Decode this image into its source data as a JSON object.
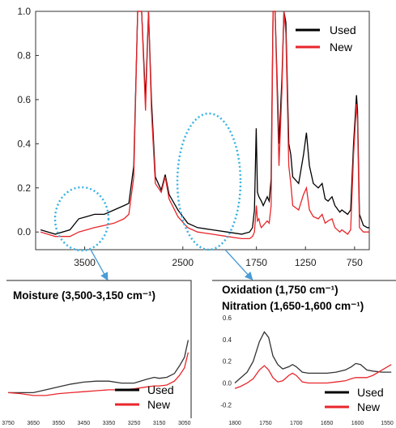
{
  "chart_data": [
    {
      "type": "line",
      "panel": "main",
      "title": "",
      "xlabel": "",
      "ylabel": "",
      "x_reversed": true,
      "xlim": [
        4000,
        600
      ],
      "ylim": [
        -0.08,
        1.0
      ],
      "x_ticks": [
        3500,
        2500,
        1750,
        1250,
        750
      ],
      "x_tick_labels": [
        "3500",
        "2500",
        "1750",
        "1250",
        "750"
      ],
      "y_ticks": [
        0.0,
        0.2,
        0.4,
        0.6,
        0.8,
        1.0
      ],
      "y_tick_labels": [
        "0.0",
        "0.2",
        "0.4",
        "0.6",
        "0.8",
        "1.0"
      ],
      "grid": false,
      "legend": {
        "position": "top-right",
        "entries": [
          "Used",
          "New"
        ]
      },
      "series": [
        {
          "name": "Used",
          "color": "#000000",
          "points": [
            [
              3950,
              0.01
            ],
            [
              3800,
              -0.01
            ],
            [
              3650,
              0.01
            ],
            [
              3560,
              0.06
            ],
            [
              3480,
              0.07
            ],
            [
              3400,
              0.08
            ],
            [
              3300,
              0.08
            ],
            [
              3200,
              0.1
            ],
            [
              3100,
              0.12
            ],
            [
              3050,
              0.13
            ],
            [
              3000,
              0.3
            ],
            [
              2960,
              1.0
            ],
            [
              2920,
              1.0
            ],
            [
              2880,
              0.6
            ],
            [
              2850,
              1.0
            ],
            [
              2820,
              0.6
            ],
            [
              2780,
              0.25
            ],
            [
              2720,
              0.19
            ],
            [
              2680,
              0.26
            ],
            [
              2640,
              0.17
            ],
            [
              2550,
              0.1
            ],
            [
              2450,
              0.04
            ],
            [
              2350,
              0.02
            ],
            [
              2200,
              0.01
            ],
            [
              2050,
              0.0
            ],
            [
              1900,
              -0.01
            ],
            [
              1820,
              0.0
            ],
            [
              1790,
              0.02
            ],
            [
              1770,
              0.1
            ],
            [
              1752,
              0.47
            ],
            [
              1740,
              0.18
            ],
            [
              1725,
              0.16
            ],
            [
              1700,
              0.14
            ],
            [
              1680,
              0.12
            ],
            [
              1640,
              0.16
            ],
            [
              1620,
              0.14
            ],
            [
              1600,
              0.24
            ],
            [
              1580,
              1.0
            ],
            [
              1560,
              1.0
            ],
            [
              1520,
              0.4
            ],
            [
              1490,
              0.7
            ],
            [
              1470,
              1.0
            ],
            [
              1450,
              0.95
            ],
            [
              1420,
              0.4
            ],
            [
              1400,
              0.35
            ],
            [
              1380,
              0.25
            ],
            [
              1320,
              0.22
            ],
            [
              1270,
              0.35
            ],
            [
              1240,
              0.45
            ],
            [
              1210,
              0.3
            ],
            [
              1170,
              0.22
            ],
            [
              1120,
              0.2
            ],
            [
              1080,
              0.22
            ],
            [
              1050,
              0.15
            ],
            [
              1020,
              0.14
            ],
            [
              980,
              0.16
            ],
            [
              950,
              0.12
            ],
            [
              900,
              0.09
            ],
            [
              880,
              0.1
            ],
            [
              850,
              0.09
            ],
            [
              820,
              0.08
            ],
            [
              790,
              0.1
            ],
            [
              760,
              0.4
            ],
            [
              730,
              0.62
            ],
            [
              720,
              0.55
            ],
            [
              700,
              0.08
            ],
            [
              660,
              0.03
            ],
            [
              620,
              0.02
            ],
            [
              600,
              0.02
            ]
          ]
        },
        {
          "name": "New",
          "color": "#e8262b",
          "points": [
            [
              3950,
              0.0
            ],
            [
              3800,
              -0.02
            ],
            [
              3650,
              -0.02
            ],
            [
              3560,
              0.0
            ],
            [
              3480,
              0.01
            ],
            [
              3400,
              0.02
            ],
            [
              3300,
              0.03
            ],
            [
              3200,
              0.04
            ],
            [
              3100,
              0.06
            ],
            [
              3050,
              0.08
            ],
            [
              3000,
              0.25
            ],
            [
              2960,
              1.0
            ],
            [
              2920,
              1.0
            ],
            [
              2880,
              0.55
            ],
            [
              2850,
              1.0
            ],
            [
              2820,
              0.55
            ],
            [
              2780,
              0.22
            ],
            [
              2720,
              0.18
            ],
            [
              2680,
              0.25
            ],
            [
              2640,
              0.15
            ],
            [
              2550,
              0.07
            ],
            [
              2450,
              0.02
            ],
            [
              2350,
              0.0
            ],
            [
              2200,
              -0.01
            ],
            [
              2050,
              -0.02
            ],
            [
              1900,
              -0.03
            ],
            [
              1820,
              -0.03
            ],
            [
              1790,
              -0.02
            ],
            [
              1770,
              0.0
            ],
            [
              1750,
              0.12
            ],
            [
              1740,
              0.05
            ],
            [
              1725,
              0.06
            ],
            [
              1710,
              0.03
            ],
            [
              1700,
              0.02
            ],
            [
              1680,
              0.03
            ],
            [
              1640,
              0.05
            ],
            [
              1620,
              0.04
            ],
            [
              1600,
              0.12
            ],
            [
              1580,
              1.0
            ],
            [
              1560,
              1.0
            ],
            [
              1520,
              0.3
            ],
            [
              1490,
              0.65
            ],
            [
              1470,
              1.0
            ],
            [
              1450,
              0.9
            ],
            [
              1420,
              0.3
            ],
            [
              1400,
              0.22
            ],
            [
              1380,
              0.12
            ],
            [
              1320,
              0.1
            ],
            [
              1270,
              0.17
            ],
            [
              1240,
              0.2
            ],
            [
              1210,
              0.1
            ],
            [
              1170,
              0.07
            ],
            [
              1120,
              0.06
            ],
            [
              1080,
              0.08
            ],
            [
              1050,
              0.04
            ],
            [
              1020,
              0.05
            ],
            [
              980,
              0.06
            ],
            [
              950,
              0.02
            ],
            [
              900,
              0.0
            ],
            [
              880,
              0.01
            ],
            [
              850,
              0.0
            ],
            [
              820,
              -0.01
            ],
            [
              790,
              0.01
            ],
            [
              760,
              0.35
            ],
            [
              730,
              0.58
            ],
            [
              720,
              0.5
            ],
            [
              700,
              0.02
            ],
            [
              660,
              0.0
            ],
            [
              620,
              0.0
            ],
            [
              600,
              0.0
            ]
          ]
        }
      ]
    },
    {
      "type": "line",
      "panel": "inset-moisture",
      "title": "Moisture (3,500-3,150 cm⁻¹)",
      "xlabel": "",
      "ylabel": "",
      "x_reversed": true,
      "xlim": [
        3750,
        3030
      ],
      "ylim": [
        0,
        1
      ],
      "x_ticks": [
        3750,
        3650,
        3550,
        3450,
        3350,
        3250,
        3150,
        3050
      ],
      "x_tick_labels": [
        "3750",
        "3650",
        "3550",
        "3450",
        "3350",
        "3250",
        "3150",
        "3050"
      ],
      "grid": false,
      "legend": {
        "position": "bottom-right",
        "entries": [
          "Used",
          "New"
        ]
      },
      "series": [
        {
          "name": "Used",
          "color": "#333333",
          "points": [
            [
              3750,
              0.2
            ],
            [
              3700,
              0.2
            ],
            [
              3650,
              0.2
            ],
            [
              3600,
              0.23
            ],
            [
              3550,
              0.26
            ],
            [
              3500,
              0.29
            ],
            [
              3450,
              0.31
            ],
            [
              3400,
              0.32
            ],
            [
              3350,
              0.32
            ],
            [
              3300,
              0.3
            ],
            [
              3250,
              0.3
            ],
            [
              3200,
              0.34
            ],
            [
              3170,
              0.36
            ],
            [
              3150,
              0.35
            ],
            [
              3120,
              0.36
            ],
            [
              3090,
              0.4
            ],
            [
              3070,
              0.48
            ],
            [
              3050,
              0.57
            ],
            [
              3035,
              0.75
            ]
          ]
        },
        {
          "name": "New",
          "color": "#e8262b",
          "points": [
            [
              3750,
              0.2
            ],
            [
              3700,
              0.19
            ],
            [
              3650,
              0.17
            ],
            [
              3600,
              0.17
            ],
            [
              3550,
              0.19
            ],
            [
              3500,
              0.2
            ],
            [
              3450,
              0.21
            ],
            [
              3400,
              0.22
            ],
            [
              3350,
              0.23
            ],
            [
              3300,
              0.23
            ],
            [
              3250,
              0.24
            ],
            [
              3200,
              0.26
            ],
            [
              3170,
              0.27
            ],
            [
              3150,
              0.27
            ],
            [
              3120,
              0.28
            ],
            [
              3090,
              0.32
            ],
            [
              3070,
              0.38
            ],
            [
              3050,
              0.46
            ],
            [
              3035,
              0.62
            ]
          ]
        }
      ]
    },
    {
      "type": "line",
      "panel": "inset-oxidation",
      "title": "Oxidation (1,750 cm⁻¹)",
      "subtitle": "Nitration (1,650-1,600 cm⁻¹)",
      "xlabel": "",
      "ylabel": "",
      "x_reversed": true,
      "xlim": [
        1800,
        1540
      ],
      "ylim": [
        -0.25,
        0.75
      ],
      "x_ticks": [
        1800,
        1750,
        1700,
        1650,
        1600,
        1550
      ],
      "x_tick_labels": [
        "1800",
        "1750",
        "1700",
        "1650",
        "1600",
        "1550"
      ],
      "y_ticks": [
        -0.2,
        0.0,
        0.2,
        0.4,
        0.6
      ],
      "y_tick_labels": [
        "-0.2",
        "0.0",
        "0.2",
        "0.4",
        "0.6"
      ],
      "grid": false,
      "legend": {
        "position": "bottom-right",
        "entries": [
          "Used",
          "New"
        ]
      },
      "series": [
        {
          "name": "Used",
          "color": "#333333",
          "points": [
            [
              1800,
              0.0
            ],
            [
              1790,
              0.05
            ],
            [
              1780,
              0.1
            ],
            [
              1770,
              0.2
            ],
            [
              1760,
              0.38
            ],
            [
              1752,
              0.47
            ],
            [
              1745,
              0.42
            ],
            [
              1738,
              0.25
            ],
            [
              1730,
              0.17
            ],
            [
              1722,
              0.13
            ],
            [
              1712,
              0.15
            ],
            [
              1706,
              0.17
            ],
            [
              1700,
              0.15
            ],
            [
              1690,
              0.1
            ],
            [
              1680,
              0.09
            ],
            [
              1665,
              0.09
            ],
            [
              1650,
              0.09
            ],
            [
              1635,
              0.1
            ],
            [
              1620,
              0.12
            ],
            [
              1610,
              0.15
            ],
            [
              1603,
              0.18
            ],
            [
              1595,
              0.17
            ],
            [
              1585,
              0.12
            ],
            [
              1575,
              0.11
            ],
            [
              1560,
              0.1
            ],
            [
              1545,
              0.1
            ]
          ]
        },
        {
          "name": "New",
          "color": "#e8262b",
          "points": [
            [
              1800,
              -0.05
            ],
            [
              1790,
              -0.03
            ],
            [
              1780,
              0.0
            ],
            [
              1770,
              0.04
            ],
            [
              1760,
              0.12
            ],
            [
              1752,
              0.16
            ],
            [
              1745,
              0.12
            ],
            [
              1738,
              0.05
            ],
            [
              1730,
              0.01
            ],
            [
              1722,
              0.02
            ],
            [
              1712,
              0.07
            ],
            [
              1706,
              0.09
            ],
            [
              1700,
              0.07
            ],
            [
              1690,
              0.01
            ],
            [
              1680,
              0.0
            ],
            [
              1665,
              0.0
            ],
            [
              1650,
              0.0
            ],
            [
              1635,
              0.01
            ],
            [
              1620,
              0.02
            ],
            [
              1610,
              0.04
            ],
            [
              1603,
              0.05
            ],
            [
              1595,
              0.05
            ],
            [
              1585,
              0.05
            ],
            [
              1575,
              0.07
            ],
            [
              1560,
              0.12
            ],
            [
              1545,
              0.17
            ]
          ]
        }
      ]
    }
  ]
}
